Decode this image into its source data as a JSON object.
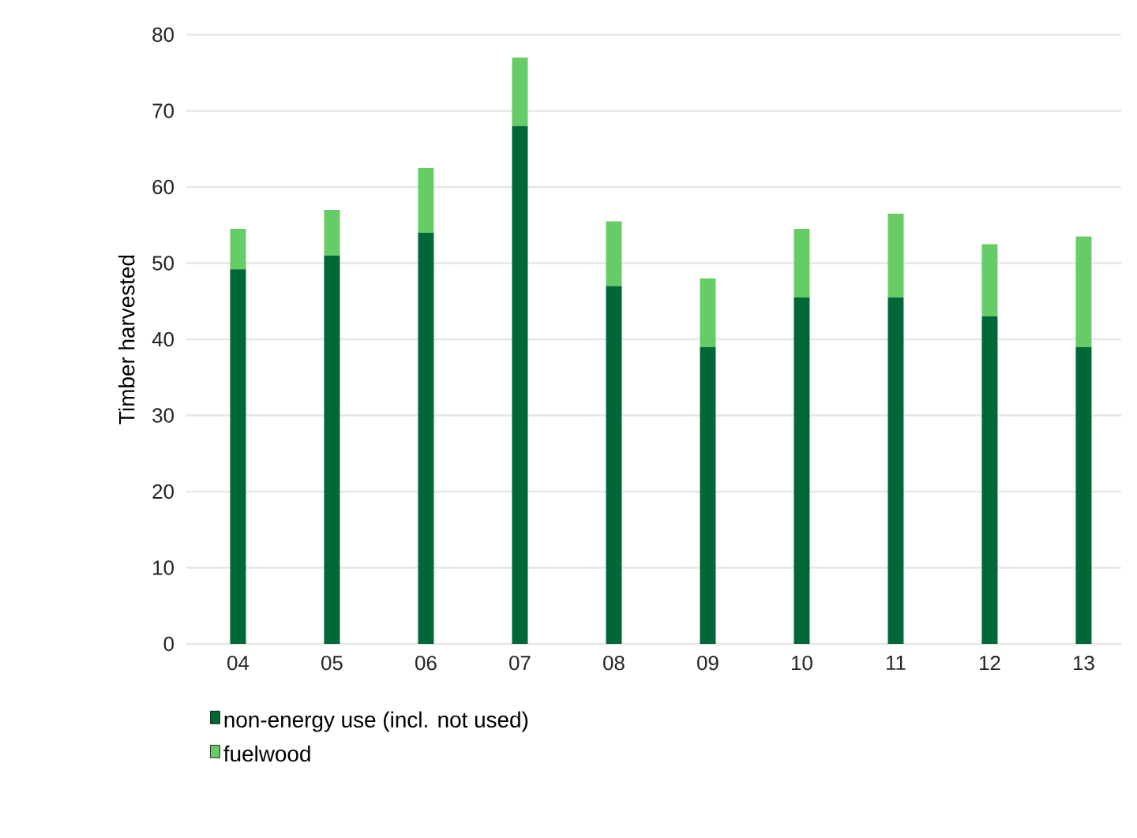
{
  "chart_data": {
    "type": "bar",
    "stacked": true,
    "ylabel": "Timber harvested",
    "categories": [
      "04",
      "05",
      "06",
      "07",
      "08",
      "09",
      "10",
      "11",
      "12",
      "13"
    ],
    "series": [
      {
        "name": "non-energy use (incl. not used)",
        "color": "#006837",
        "values": [
          49.2,
          51,
          54,
          68,
          47,
          39,
          45.5,
          45.5,
          43,
          39
        ]
      },
      {
        "name": "fuelwood",
        "color": "#66cc66",
        "values": [
          5.3,
          6,
          8.5,
          9,
          8.5,
          9,
          9,
          11,
          9.5,
          14.5
        ]
      }
    ],
    "ylim": [
      0,
      80
    ],
    "yticks": [
      0,
      10,
      20,
      30,
      40,
      50,
      60,
      70,
      80
    ],
    "grid": "y",
    "legend": "bottom"
  }
}
